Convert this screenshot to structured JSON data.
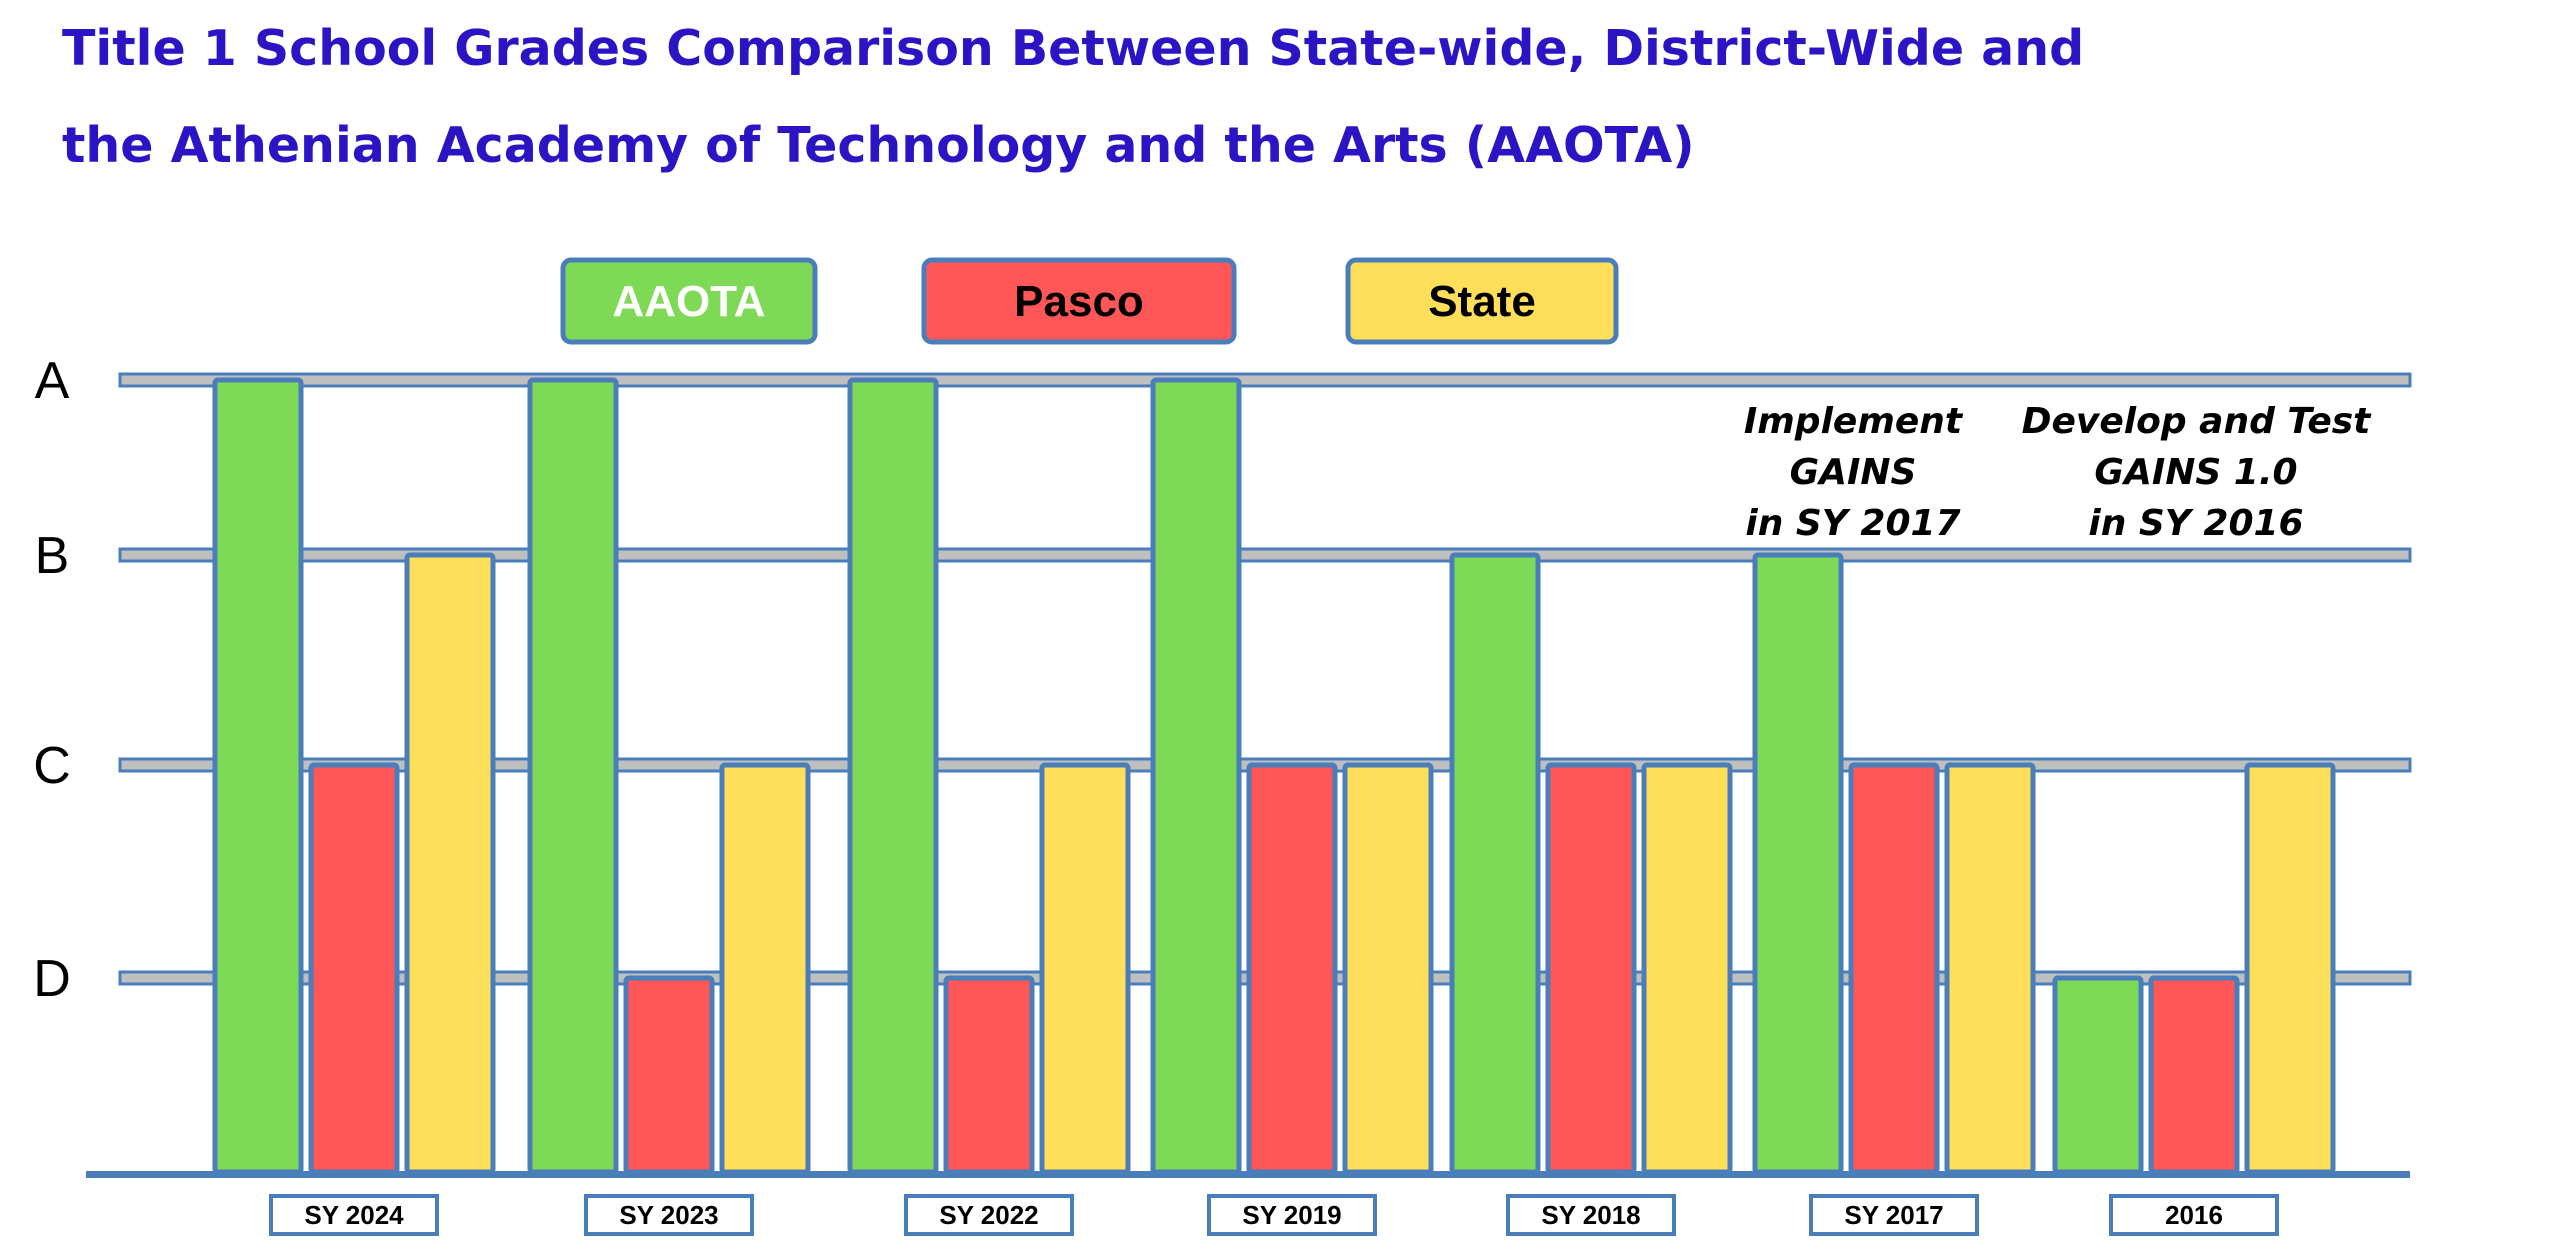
{
  "title": {
    "line1": "Title 1 School Grades Comparison Between State-wide, District-Wide and",
    "line2": "the Athenian Academy of Technology and the Arts (AAOTA)"
  },
  "chart_data": {
    "type": "bar",
    "categories": [
      "SY 2024",
      "SY 2023",
      "SY 2022",
      "SY 2019",
      "SY 2018",
      "SY 2017",
      "2016"
    ],
    "grade_scale": [
      "D",
      "C",
      "B",
      "A"
    ],
    "series": [
      {
        "name": "AAOTA",
        "color": "#7ed957",
        "values": [
          "A",
          "A",
          "A",
          "A",
          "B",
          "B",
          "D"
        ]
      },
      {
        "name": "Pasco",
        "color": "#ff5757",
        "values": [
          "C",
          "D",
          "D",
          "C",
          "C",
          "C",
          "D"
        ]
      },
      {
        "name": "State",
        "color": "#ffde59",
        "values": [
          "B",
          "C",
          "C",
          "C",
          "C",
          "C",
          "C"
        ]
      }
    ],
    "annotations": [
      {
        "lines": [
          "Implement",
          "GAINS",
          "in SY 2017"
        ]
      },
      {
        "lines": [
          "Develop and Test",
          "GAINS 1.0",
          "in SY 2016"
        ]
      }
    ],
    "legend_position": "top"
  },
  "colors": {
    "title": "#2a14c4",
    "outline": "#4a7ebb",
    "gridline": "#bfbfbf"
  }
}
